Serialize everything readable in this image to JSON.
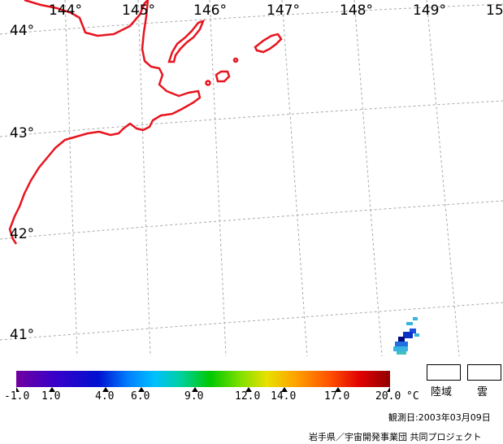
{
  "map": {
    "lon_labels": [
      "144°",
      "145°",
      "146°",
      "147°",
      "148°",
      "149°",
      "15"
    ],
    "lat_labels": [
      "44°",
      "43°",
      "42°",
      "41°"
    ],
    "coast_color": "#e8141e",
    "grid_color": "#a9a9a9"
  },
  "colorbar": {
    "ticks": [
      "-1.0",
      "1.0",
      "4.0",
      "6.0",
      "9.0",
      "12.0",
      "14.0",
      "17.0",
      "20.0"
    ],
    "unit": "°C",
    "range": [
      -1.0,
      20.0
    ]
  },
  "legend": {
    "land_label": "陸域",
    "cloud_label": "雲"
  },
  "footer": {
    "date_label": "観測日:2003年03月09日",
    "credit": "岩手県／宇宙開発事業団 共同プロジェクト"
  }
}
